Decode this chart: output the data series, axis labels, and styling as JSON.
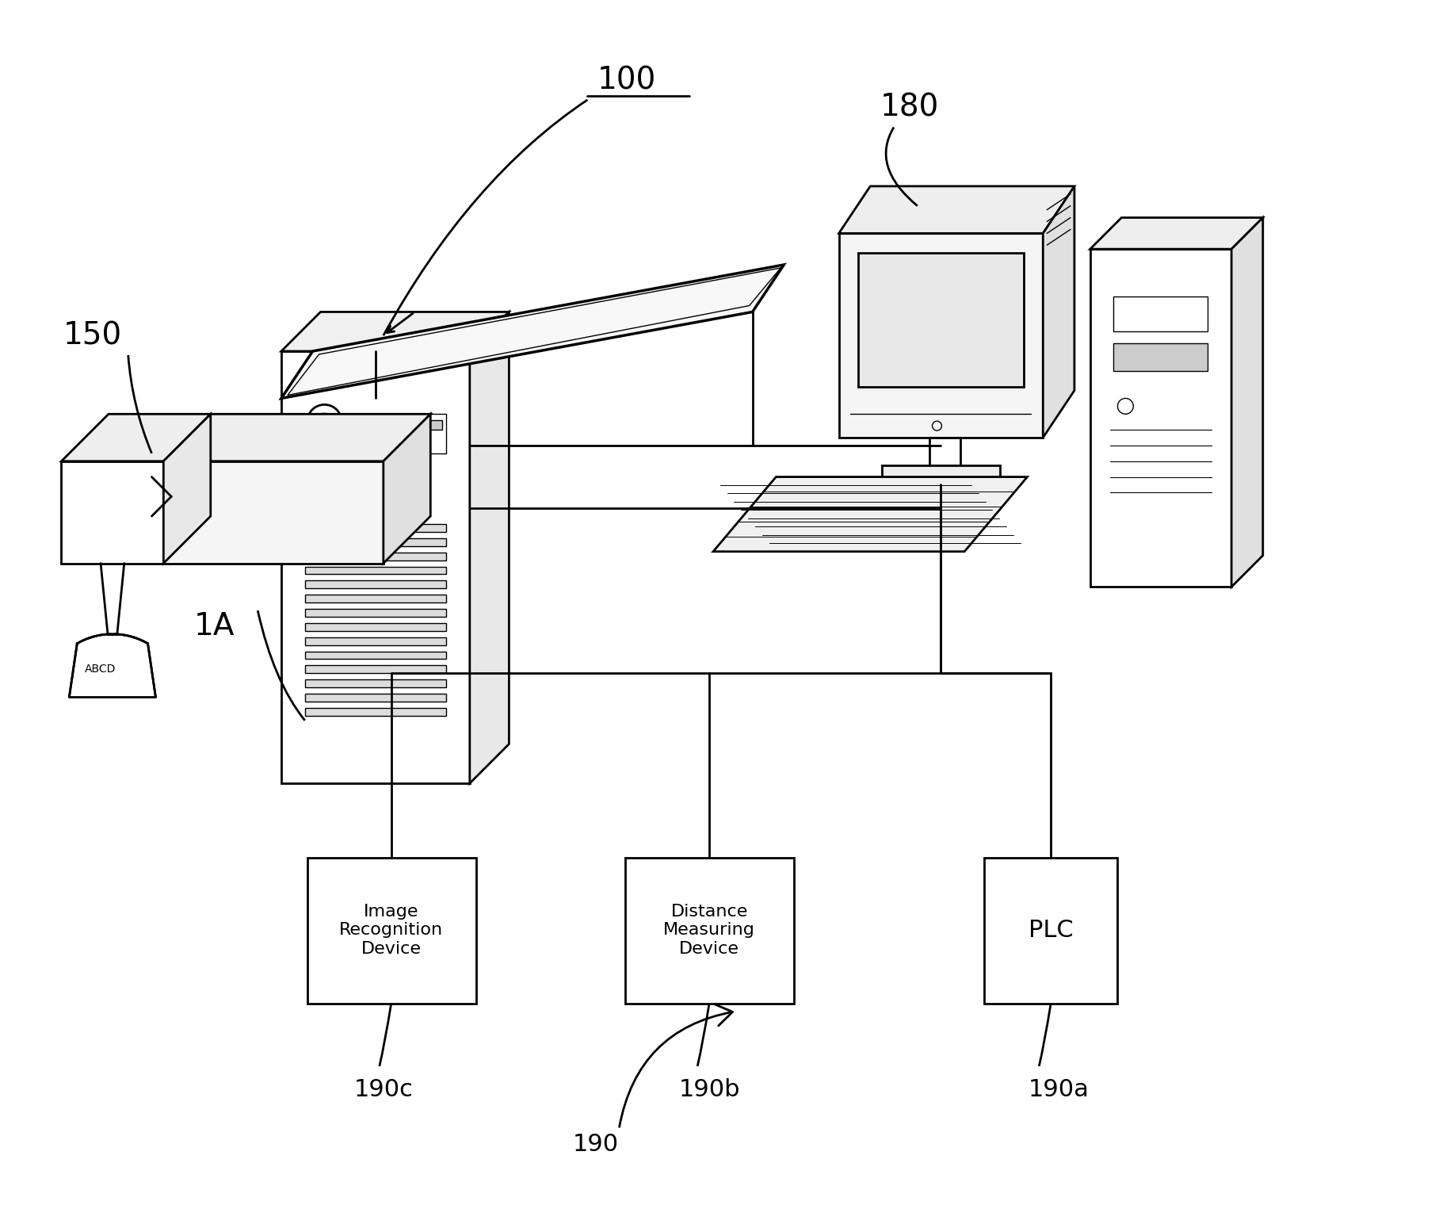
{
  "bg_color": "#ffffff",
  "lc": "#000000",
  "lw": 2.0,
  "lw_thin": 1.0,
  "lw_thick": 2.5,
  "figsize": [
    18.11,
    15.49
  ],
  "dpi": 100,
  "label_100": "100",
  "label_150": "150",
  "label_180": "180",
  "label_1A": "1A",
  "label_190": "190",
  "label_190a": "190a",
  "label_190b": "190b",
  "label_190c": "190c",
  "box1_label": "Image\nRecognition\nDevice",
  "box2_label": "Distance\nMeasuring\nDevice",
  "box3_label": "PLC",
  "fs_large": 28,
  "fs_med": 22,
  "fs_small": 16,
  "fs_tiny": 10
}
